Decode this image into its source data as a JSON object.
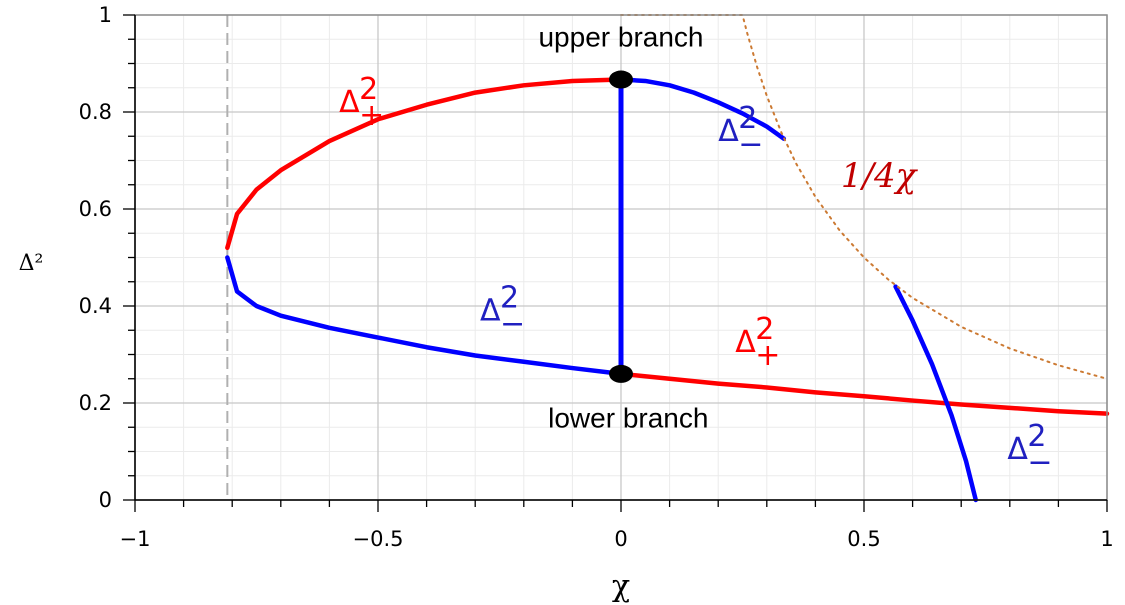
{
  "chart_data": {
    "type": "line",
    "xlabel": "χ",
    "ylabel": "Δ²",
    "xlim": [
      -1,
      1
    ],
    "ylim": [
      0,
      1
    ],
    "grid": true,
    "x_ticks": [
      -1,
      -0.5,
      0,
      0.5,
      1
    ],
    "x_tick_labels": [
      "−1",
      "−0.5",
      "0",
      "0.5",
      "1"
    ],
    "y_ticks": [
      0,
      0.2,
      0.4,
      0.6,
      0.8,
      1
    ],
    "y_tick_labels": [
      "0",
      "0.2",
      "0.4",
      "0.6",
      "0.8",
      "1"
    ],
    "reference_lines": [
      {
        "orientation": "vertical",
        "x": -0.81,
        "style": "dashed",
        "color": "#b0b0b0"
      }
    ],
    "series": [
      {
        "role": "upper-left",
        "color": "#ff0000",
        "style": "solid",
        "points": [
          [
            -0.81,
            0.52
          ],
          [
            -0.79,
            0.59
          ],
          [
            -0.75,
            0.64
          ],
          [
            -0.7,
            0.68
          ],
          [
            -0.6,
            0.74
          ],
          [
            -0.5,
            0.785
          ],
          [
            -0.4,
            0.815
          ],
          [
            -0.3,
            0.84
          ],
          [
            -0.2,
            0.855
          ],
          [
            -0.1,
            0.864
          ],
          [
            0,
            0.867
          ]
        ]
      },
      {
        "role": "upper-right",
        "color": "#0000ff",
        "style": "solid",
        "points": [
          [
            0,
            0.867
          ],
          [
            0.05,
            0.864
          ],
          [
            0.1,
            0.855
          ],
          [
            0.15,
            0.84
          ],
          [
            0.2,
            0.82
          ],
          [
            0.25,
            0.797
          ],
          [
            0.3,
            0.77
          ],
          [
            0.335,
            0.745
          ]
        ]
      },
      {
        "role": "lower-left",
        "color": "#0000ff",
        "style": "solid",
        "points": [
          [
            -0.81,
            0.5
          ],
          [
            -0.79,
            0.43
          ],
          [
            -0.75,
            0.4
          ],
          [
            -0.7,
            0.38
          ],
          [
            -0.6,
            0.355
          ],
          [
            -0.5,
            0.335
          ],
          [
            -0.4,
            0.315
          ],
          [
            -0.3,
            0.298
          ],
          [
            -0.2,
            0.285
          ],
          [
            -0.1,
            0.272
          ],
          [
            0,
            0.26
          ]
        ]
      },
      {
        "role": "lower-right",
        "color": "#ff0000",
        "style": "solid",
        "points": [
          [
            0,
            0.26
          ],
          [
            0.1,
            0.25
          ],
          [
            0.2,
            0.24
          ],
          [
            0.3,
            0.232
          ],
          [
            0.4,
            0.222
          ],
          [
            0.5,
            0.214
          ],
          [
            0.6,
            0.205
          ],
          [
            0.7,
            0.197
          ],
          [
            0.8,
            0.19
          ],
          [
            0.9,
            0.183
          ],
          [
            1,
            0.178
          ]
        ]
      },
      {
        "role": "vertical-connector",
        "color": "#0000ff",
        "style": "solid",
        "points": [
          [
            0,
            0.26
          ],
          [
            0,
            0.867
          ]
        ]
      },
      {
        "role": "falling-branch",
        "color": "#0000ff",
        "style": "solid",
        "points": [
          [
            0.565,
            0.44
          ],
          [
            0.6,
            0.37
          ],
          [
            0.64,
            0.28
          ],
          [
            0.68,
            0.175
          ],
          [
            0.71,
            0.08
          ],
          [
            0.73,
            0
          ]
        ]
      },
      {
        "role": "one-over-four-chi",
        "color": "#cc7a33",
        "style": "dotted",
        "points": [
          [
            0,
            1
          ],
          [
            0.25,
            1
          ],
          [
            0.26,
            0.9615
          ],
          [
            0.28,
            0.8929
          ],
          [
            0.3,
            0.8333
          ],
          [
            0.33,
            0.7576
          ],
          [
            0.36,
            0.6944
          ],
          [
            0.4,
            0.625
          ],
          [
            0.45,
            0.5556
          ],
          [
            0.5,
            0.5
          ],
          [
            0.55,
            0.4545
          ],
          [
            0.6,
            0.4167
          ],
          [
            0.7,
            0.3571
          ],
          [
            0.8,
            0.3125
          ],
          [
            0.9,
            0.2778
          ],
          [
            1,
            0.25
          ]
        ]
      }
    ],
    "markers": [
      {
        "x": 0,
        "y": 0.867,
        "color": "#000000"
      },
      {
        "x": 0,
        "y": 0.26,
        "color": "#000000"
      }
    ],
    "annotations": [
      {
        "id": "upper",
        "text": "upper branch",
        "x": 0,
        "y": 0.935,
        "color": "#000000"
      },
      {
        "id": "lower",
        "text": "lower branch",
        "x": 0.015,
        "y": 0.15,
        "color": "#000000"
      },
      {
        "id": "recip",
        "text": "1/4χ",
        "x": 0.53,
        "y": 0.645,
        "color": "#c00000"
      }
    ],
    "series_labels": [
      {
        "base": "Δ",
        "sup": "2",
        "sub": "+",
        "color": "#ff0000",
        "x": -0.58,
        "y": 0.8
      },
      {
        "base": "Δ",
        "sup": "2",
        "sub": "−",
        "color": "#2020c0",
        "x": 0.2,
        "y": 0.74
      },
      {
        "base": "Δ",
        "sup": "2",
        "sub": "−",
        "color": "#2020c0",
        "x": -0.29,
        "y": 0.37
      },
      {
        "base": "Δ",
        "sup": "2",
        "sub": "+",
        "color": "#ff0000",
        "x": 0.235,
        "y": 0.305
      },
      {
        "base": "Δ",
        "sup": "2",
        "sub": "−",
        "color": "#2020c0",
        "x": 0.795,
        "y": 0.085
      }
    ]
  }
}
